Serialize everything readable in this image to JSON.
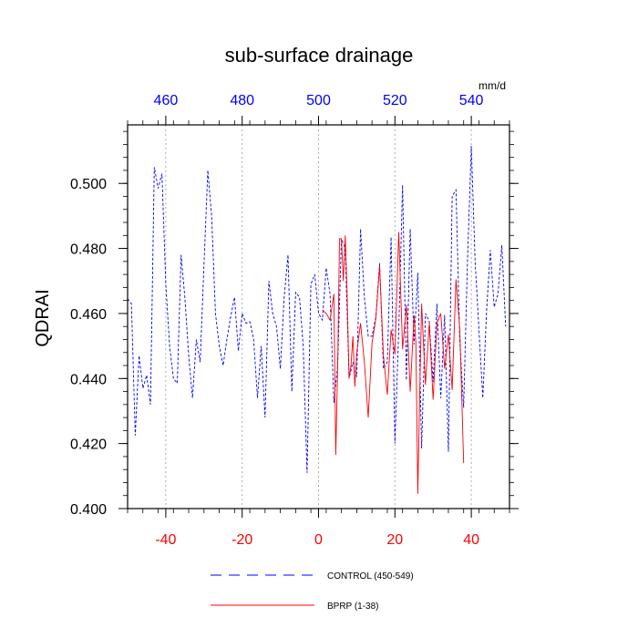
{
  "chart_data": {
    "type": "line",
    "title": "sub-surface drainage",
    "ylabel": "QDRAI",
    "units_label": "mm/d",
    "xlim": [
      -50,
      50
    ],
    "ylim": [
      0.4,
      0.518
    ],
    "y_ticks": [
      0.4,
      0.42,
      0.44,
      0.46,
      0.48,
      0.5
    ],
    "y_tick_labels": [
      "0.400",
      "0.420",
      "0.440",
      "0.460",
      "0.480",
      "0.500"
    ],
    "x_ticks": [
      -40,
      -20,
      0,
      20,
      40
    ],
    "x_tick_labels": [
      "-40",
      "-20",
      "0",
      "20",
      "40"
    ],
    "top_ticks": [
      -40,
      -20,
      0,
      20,
      40
    ],
    "top_tick_labels": [
      "460",
      "480",
      "500",
      "520",
      "540"
    ],
    "grid_x": [
      -40,
      -20,
      0,
      20,
      40
    ],
    "colors": {
      "control": "#0000ff",
      "bprp": "#ff0000",
      "bottom_ticks": "#ff0000",
      "top_ticks": "#0000ff",
      "grid": "#999999"
    },
    "series": [
      {
        "name": "CONTROL (450-549)",
        "style": "dashed",
        "x": [
          -50,
          -49,
          -48,
          -47,
          -46,
          -45,
          -44,
          -43,
          -42,
          -41,
          -40,
          -39,
          -38,
          -37,
          -36,
          -35,
          -34,
          -33,
          -32,
          -31,
          -30,
          -29,
          -28,
          -27,
          -26,
          -25,
          -24,
          -23,
          -22,
          -21,
          -20,
          -19,
          -18,
          -17,
          -16,
          -15,
          -14,
          -13,
          -12,
          -11,
          -10,
          -9,
          -8,
          -7,
          -6,
          -5,
          -4,
          -3,
          -2,
          -1,
          0,
          1,
          2,
          3,
          4,
          5,
          6,
          7,
          8,
          9,
          10,
          11,
          12,
          13,
          14,
          15,
          16,
          17,
          18,
          19,
          20,
          21,
          22,
          23,
          24,
          25,
          26,
          27,
          28,
          29,
          30,
          31,
          32,
          33,
          34,
          35,
          36,
          37,
          38,
          39,
          40,
          41,
          42,
          43,
          44,
          45,
          46,
          47,
          48,
          49
        ],
        "values": [
          0.4645,
          0.463,
          0.4225,
          0.447,
          0.437,
          0.441,
          0.432,
          0.505,
          0.4985,
          0.503,
          0.469,
          0.45,
          0.44,
          0.4385,
          0.478,
          0.465,
          0.447,
          0.434,
          0.452,
          0.445,
          0.475,
          0.504,
          0.49,
          0.46,
          0.45,
          0.444,
          0.452,
          0.459,
          0.465,
          0.4485,
          0.46,
          0.457,
          0.4575,
          0.452,
          0.434,
          0.45,
          0.428,
          0.47,
          0.46,
          0.456,
          0.443,
          0.465,
          0.478,
          0.436,
          0.4665,
          0.465,
          0.45,
          0.411,
          0.469,
          0.472,
          0.46,
          0.458,
          0.474,
          0.466,
          0.4325,
          0.444,
          0.483,
          0.48,
          0.44,
          0.445,
          0.4405,
          0.486,
          0.465,
          0.453,
          0.453,
          0.459,
          0.4755,
          0.443,
          0.445,
          0.4835,
          0.42,
          0.455,
          0.4995,
          0.4395,
          0.486,
          0.4505,
          0.4725,
          0.4185,
          0.46,
          0.4575,
          0.439,
          0.463,
          0.434,
          0.4595,
          0.4175,
          0.496,
          0.498,
          0.4515,
          0.431,
          0.476,
          0.5115,
          0.476,
          0.455,
          0.434,
          0.461,
          0.4795,
          0.462,
          0.466,
          0.481,
          0.456
        ]
      },
      {
        "name": "BPRP (1-38)",
        "style": "solid",
        "x": [
          1,
          2,
          3,
          3.5,
          4,
          4.5,
          5,
          5.5,
          6,
          6.5,
          7,
          7.5,
          8,
          8.5,
          9,
          9.5,
          10,
          11,
          12,
          13,
          14,
          15,
          16,
          17,
          18,
          19,
          20,
          21,
          22,
          23,
          24,
          25,
          25.5,
          26,
          26.5,
          27,
          28,
          29,
          30,
          31,
          32,
          33,
          34,
          35,
          36,
          37,
          38
        ],
        "values": [
          0.461,
          0.46,
          0.458,
          0.462,
          0.466,
          0.4165,
          0.444,
          0.483,
          0.483,
          0.47,
          0.484,
          0.4655,
          0.44,
          0.444,
          0.453,
          0.4375,
          0.448,
          0.457,
          0.445,
          0.428,
          0.451,
          0.4585,
          0.4745,
          0.447,
          0.435,
          0.455,
          0.4475,
          0.485,
          0.449,
          0.4625,
          0.436,
          0.4595,
          0.451,
          0.4045,
          0.435,
          0.463,
          0.438,
          0.457,
          0.4335,
          0.457,
          0.46,
          0.443,
          0.4535,
          0.4365,
          0.4705,
          0.455,
          0.414
        ]
      }
    ],
    "legend": [
      {
        "label": "CONTROL (450-549)",
        "style": "dashed",
        "color": "#0000ff"
      },
      {
        "label": "BPRP (1-38)",
        "style": "solid",
        "color": "#ff0000"
      }
    ]
  }
}
